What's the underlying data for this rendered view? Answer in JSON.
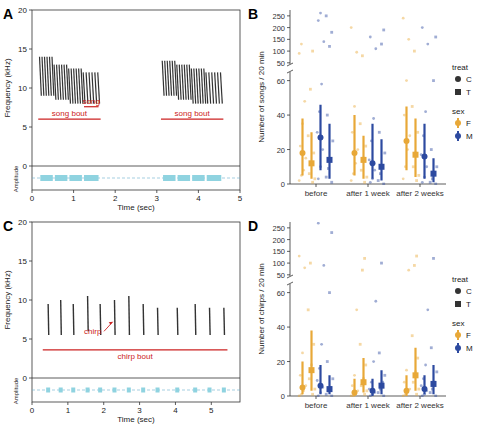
{
  "chart_data": [
    {
      "panel": "A",
      "type": "spectrogram",
      "xlabel": "Time (sec)",
      "ylabel": "Frequency (kHz)",
      "amplitude_label": "Amplitude",
      "xlim": [
        0,
        5
      ],
      "xticks": [
        0,
        1,
        2,
        3,
        4,
        5
      ],
      "ylim": [
        0,
        20
      ],
      "yticks": [
        0,
        5,
        10,
        15,
        20
      ],
      "color": "#333333",
      "annotation_color": "#cc2222",
      "songs": [
        {
          "t0": 0.2,
          "t1": 0.5,
          "f": [
            9,
            14
          ]
        },
        {
          "t0": 0.55,
          "t1": 0.85,
          "f": [
            8.5,
            13
          ]
        },
        {
          "t0": 0.9,
          "t1": 1.2,
          "f": [
            8,
            12.5
          ]
        },
        {
          "t0": 1.25,
          "t1": 1.6,
          "f": [
            8,
            12
          ]
        },
        {
          "t0": 3.15,
          "t1": 3.45,
          "f": [
            9,
            13.5
          ]
        },
        {
          "t0": 3.5,
          "t1": 3.8,
          "f": [
            8.5,
            13
          ]
        },
        {
          "t0": 3.85,
          "t1": 4.15,
          "f": [
            8,
            12.5
          ]
        },
        {
          "t0": 4.2,
          "t1": 4.55,
          "f": [
            8,
            12
          ]
        }
      ],
      "annotations": [
        {
          "text": "song bout",
          "x": [
            0.15,
            1.65
          ],
          "y": 6
        },
        {
          "text": "song",
          "x": [
            1.25,
            1.6
          ],
          "y": 7.6
        },
        {
          "text": "song bout",
          "x": [
            3.1,
            4.6
          ],
          "y": 6
        }
      ]
    },
    {
      "panel": "B",
      "type": "pointrange",
      "ylabel": "Number of songs / 20 min",
      "categories": [
        "before",
        "after 1 week",
        "after 2 weeks"
      ],
      "ylim": [
        0,
        65
      ],
      "yticks": [
        0,
        20,
        40,
        60
      ],
      "y2lim": [
        45,
        275
      ],
      "y2ticks": [
        50,
        100,
        150,
        200,
        250
      ],
      "legend": "right",
      "legend_groups": [
        {
          "title": "treat",
          "items": [
            {
              "label": "C",
              "marker": "circle"
            },
            {
              "label": "T",
              "marker": "square"
            }
          ]
        },
        {
          "title": "sex",
          "items": [
            {
              "label": "F",
              "color": "#e8a838"
            },
            {
              "label": "M",
              "color": "#2d4aa0"
            }
          ]
        }
      ],
      "series": [
        {
          "color": "#e8a838",
          "marker": "circle",
          "values": [
            18,
            18,
            25
          ],
          "low": [
            5,
            5,
            8
          ],
          "high": [
            38,
            40,
            45
          ],
          "points": [
            [
              2,
              5,
              8,
              15,
              22,
              35,
              48,
              90,
              130
            ],
            [
              2,
              6,
              12,
              20,
              30,
              45,
              95,
              200
            ],
            [
              3,
              10,
              20,
              28,
              40,
              60,
              150,
              240
            ]
          ]
        },
        {
          "color": "#e8a838",
          "marker": "square",
          "values": [
            12,
            14,
            17
          ],
          "low": [
            3,
            3,
            4
          ],
          "high": [
            30,
            28,
            38
          ],
          "points": [
            [
              1,
              3,
              6,
              12,
              18,
              28,
              55,
              100
            ],
            [
              1,
              4,
              8,
              15,
              22,
              35,
              80
            ],
            [
              2,
              5,
              10,
              18,
              30,
              45,
              100
            ]
          ]
        },
        {
          "color": "#2d4aa0",
          "marker": "circle",
          "values": [
            27,
            12,
            16
          ],
          "low": [
            8,
            3,
            3
          ],
          "high": [
            46,
            35,
            35
          ],
          "points": [
            [
              3,
              10,
              20,
              30,
              42,
              58,
              140,
              230,
              262
            ],
            [
              1,
              3,
              8,
              14,
              25,
              38,
              110,
              160
            ],
            [
              1,
              4,
              10,
              17,
              28,
              42,
              130,
              200
            ]
          ]
        },
        {
          "color": "#2d4aa0",
          "marker": "square",
          "values": [
            14,
            10,
            6
          ],
          "low": [
            3,
            2,
            1
          ],
          "high": [
            35,
            26,
            15
          ],
          "points": [
            [
              1,
              4,
              9,
              14,
              25,
              40,
              120,
              180,
              250
            ],
            [
              0,
              2,
              6,
              10,
              18,
              30,
              130,
              190
            ],
            [
              0,
              1,
              3,
              6,
              10,
              20,
              60,
              160
            ]
          ]
        }
      ]
    },
    {
      "panel": "C",
      "type": "spectrogram",
      "xlabel": "Time (sec)",
      "ylabel": "Frequency (kHz)",
      "amplitude_label": "Amplitude",
      "xlim": [
        0,
        5.8
      ],
      "xticks": [
        0,
        1,
        2,
        3,
        4,
        5
      ],
      "ylim": [
        0,
        20
      ],
      "yticks": [
        0,
        5,
        10,
        15,
        20
      ],
      "color": "#333333",
      "annotation_color": "#cc2222",
      "chirps": [
        {
          "t": 0.45,
          "f": [
            5.5,
            9.5
          ]
        },
        {
          "t": 0.8,
          "f": [
            5.5,
            10
          ]
        },
        {
          "t": 1.15,
          "f": [
            5.5,
            9.5
          ]
        },
        {
          "t": 1.55,
          "f": [
            6,
            10.5
          ]
        },
        {
          "t": 1.9,
          "f": [
            5.5,
            9.5
          ]
        },
        {
          "t": 2.3,
          "f": [
            5.5,
            10
          ]
        },
        {
          "t": 2.7,
          "f": [
            5.5,
            10.5
          ]
        },
        {
          "t": 3.1,
          "f": [
            5.5,
            9.5
          ]
        },
        {
          "t": 3.5,
          "f": [
            5.5,
            9
          ]
        },
        {
          "t": 4.05,
          "f": [
            5.5,
            9
          ]
        },
        {
          "t": 4.55,
          "f": [
            5.5,
            9.5
          ]
        },
        {
          "t": 4.95,
          "f": [
            5.5,
            9
          ]
        },
        {
          "t": 5.35,
          "f": [
            5.5,
            9
          ]
        }
      ],
      "annotations": [
        {
          "text": "chirp",
          "x": 1.45,
          "y": 5.6,
          "target": [
            2.25,
            7.2
          ]
        },
        {
          "text": "chirp bout",
          "x": [
            0.3,
            5.45
          ],
          "y": 3.6
        }
      ]
    },
    {
      "panel": "D",
      "type": "pointrange",
      "ylabel": "Number of chirps / 20 min",
      "categories": [
        "before",
        "after 1 week",
        "after 2 weeks"
      ],
      "ylim": [
        0,
        65
      ],
      "yticks": [
        0,
        20,
        40,
        60
      ],
      "y2lim": [
        45,
        275
      ],
      "y2ticks": [
        50,
        100,
        150,
        200,
        250
      ],
      "legend": "right",
      "legend_groups": [
        {
          "title": "treat",
          "items": [
            {
              "label": "C",
              "marker": "circle"
            },
            {
              "label": "T",
              "marker": "square"
            }
          ]
        },
        {
          "title": "sex",
          "items": [
            {
              "label": "F",
              "color": "#e8a838"
            },
            {
              "label": "M",
              "color": "#2d4aa0"
            }
          ]
        }
      ],
      "series": [
        {
          "color": "#e8a838",
          "marker": "circle",
          "values": [
            5,
            2,
            3
          ],
          "low": [
            1,
            0,
            0
          ],
          "high": [
            20,
            10,
            12
          ],
          "points": [
            [
              0,
              1,
              3,
              6,
              12,
              25,
              80,
              130
            ],
            [
              0,
              0,
              1,
              3,
              6,
              12,
              50
            ],
            [
              0,
              1,
              2,
              4,
              8,
              15,
              70
            ]
          ]
        },
        {
          "color": "#e8a838",
          "marker": "square",
          "values": [
            15,
            8,
            12
          ],
          "low": [
            3,
            2,
            3
          ],
          "high": [
            38,
            22,
            28
          ],
          "points": [
            [
              1,
              4,
              10,
              18,
              30,
              50,
              100
            ],
            [
              1,
              3,
              6,
              10,
              18,
              30,
              70,
              120
            ],
            [
              1,
              4,
              8,
              14,
              22,
              35,
              90,
              130
            ]
          ]
        },
        {
          "color": "#2d4aa0",
          "marker": "circle",
          "values": [
            6,
            3,
            4
          ],
          "low": [
            1,
            0,
            1
          ],
          "high": [
            18,
            10,
            12
          ],
          "points": [
            [
              0,
              2,
              5,
              9,
              16,
              30,
              90,
              270
            ],
            [
              0,
              1,
              2,
              4,
              8,
              20,
              55
            ],
            [
              0,
              1,
              3,
              6,
              10,
              18,
              50
            ]
          ]
        },
        {
          "color": "#2d4aa0",
          "marker": "square",
          "values": [
            4,
            6,
            7
          ],
          "low": [
            1,
            1,
            1
          ],
          "high": [
            12,
            15,
            18
          ],
          "points": [
            [
              0,
              1,
              3,
              5,
              10,
              20,
              60,
              230
            ],
            [
              0,
              2,
              4,
              8,
              12,
              25,
              100
            ],
            [
              0,
              2,
              4,
              8,
              14,
              28,
              120
            ]
          ]
        }
      ]
    }
  ]
}
